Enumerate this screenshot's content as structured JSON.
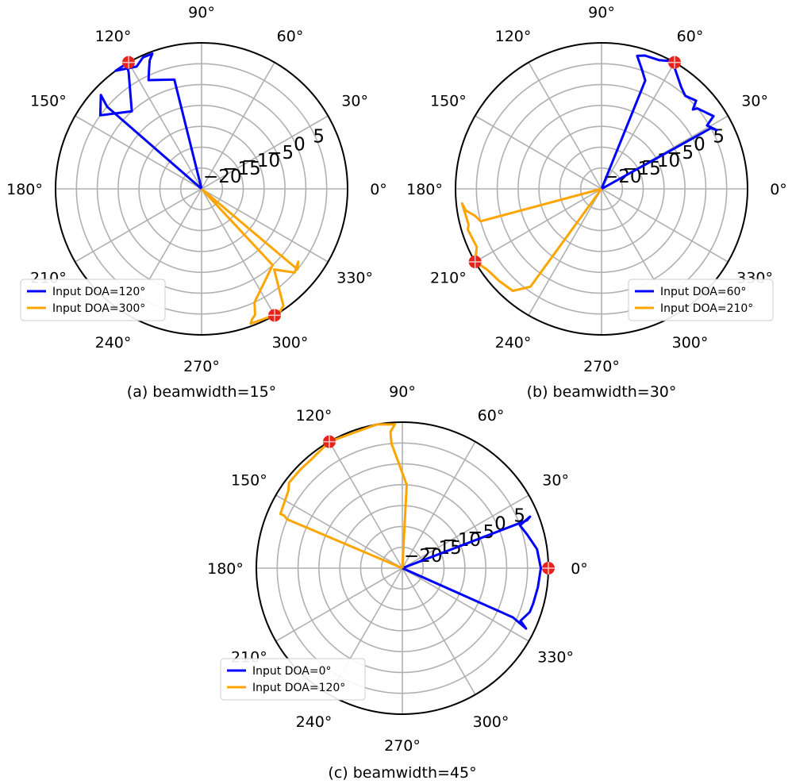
{
  "colors": {
    "series_blue": "#0000ff",
    "series_orange": "#ffa500",
    "grid": "#b0b0b0",
    "marker": "#e8221b",
    "frame": "#000000"
  },
  "chart_data": [
    {
      "type": "polar-line",
      "caption": "(a) beamwidth=15°",
      "angle_ticks": [
        "0°",
        "30°",
        "60°",
        "90°",
        "120°",
        "150°",
        "180°",
        "210°",
        "240°",
        "270°",
        "300°",
        "330°"
      ],
      "radial_ticks": [
        "−20",
        "−15",
        "−10",
        "−5",
        "0",
        "5"
      ],
      "rlim": [
        -25,
        10
      ],
      "grid": true,
      "legend_position": "lower-left",
      "series": [
        {
          "name": "Input DOA=120°",
          "color_key": "series_blue",
          "marker_angle": 120,
          "marker_r": 10,
          "points": [
            [
              0,
              -25
            ],
            [
              139,
              5
            ],
            [
              137,
              8
            ],
            [
              144,
              5
            ],
            [
              132,
              0
            ],
            [
              122,
              8
            ],
            [
              121,
              10
            ],
            [
              126,
              10
            ],
            [
              118,
              8.2
            ],
            [
              114,
              9.5
            ],
            [
              110,
              9.5
            ],
            [
              112,
              8.2
            ],
            [
              114,
              6
            ],
            [
              116,
              4
            ],
            [
              104,
              2
            ],
            [
              120,
              -25
            ]
          ]
        },
        {
          "name": "Input DOA=300°",
          "color_key": "series_orange",
          "marker_angle": 300,
          "marker_r": 10,
          "points": [
            [
              0,
              -25
            ],
            [
              320,
              5
            ],
            [
              323,
              4
            ],
            [
              318,
              5
            ],
            [
              312,
              1
            ],
            [
              305,
              9.2
            ],
            [
              303,
              9.8
            ],
            [
              300,
              10
            ],
            [
              296,
              9.6
            ],
            [
              290,
              9.4
            ],
            [
              291,
              8.6
            ],
            [
              293,
              7.8
            ],
            [
              295,
              5
            ],
            [
              313,
              0
            ],
            [
              300,
              -25
            ]
          ]
        }
      ]
    },
    {
      "type": "polar-line",
      "caption": "(b) beamwidth=30°",
      "angle_ticks": [
        "0°",
        "30°",
        "60°",
        "90°",
        "120°",
        "150°",
        "180°",
        "210°",
        "240°",
        "270°",
        "300°",
        "330°"
      ],
      "radial_ticks": [
        "−20",
        "−15",
        "−10",
        "−5",
        "0",
        "5"
      ],
      "rlim": [
        -25,
        10
      ],
      "grid": true,
      "legend_position": "lower-right",
      "series": [
        {
          "name": "Input DOA=60°",
          "color_key": "series_blue",
          "marker_angle": 60,
          "marker_r": 10,
          "points": [
            [
              0,
              -25
            ],
            [
              29,
              5
            ],
            [
              27,
              6
            ],
            [
              31,
              4.5
            ],
            [
              33,
              7
            ],
            [
              40,
              5
            ],
            [
              41,
              4
            ],
            [
              43,
              6
            ],
            [
              48,
              5
            ],
            [
              52,
              6
            ],
            [
              57,
              8
            ],
            [
              61,
              10
            ],
            [
              66,
              8.8
            ],
            [
              72,
              8.6
            ],
            [
              75,
              8
            ],
            [
              71,
              5
            ],
            [
              68,
              3
            ],
            [
              80,
              -25
            ]
          ]
        },
        {
          "name": "Input DOA=210°",
          "color_key": "series_orange",
          "marker_angle": 210,
          "marker_r": 10,
          "points": [
            [
              0,
              -25
            ],
            [
              195,
              5
            ],
            [
              192,
              6
            ],
            [
              189,
              8
            ],
            [
              186,
              8.6
            ],
            [
              195,
              8
            ],
            [
              197,
              8.5
            ],
            [
              205,
              8
            ],
            [
              210,
              10
            ],
            [
              215,
              8.6
            ],
            [
              222,
              8
            ],
            [
              229,
              7.4
            ],
            [
              234,
              4
            ],
            [
              243,
              -25
            ]
          ]
        }
      ]
    },
    {
      "type": "polar-line",
      "caption": "(c) beamwidth=45°",
      "angle_ticks": [
        "0°",
        "30°",
        "60°",
        "90°",
        "120°",
        "150°",
        "180°",
        "210°",
        "240°",
        "270°",
        "300°",
        "330°"
      ],
      "radial_ticks": [
        "−20",
        "−15",
        "−10",
        "−5",
        "0",
        "5"
      ],
      "rlim": [
        -25,
        10
      ],
      "grid": true,
      "legend_position": "lower-left",
      "series": [
        {
          "name": "Input DOA=0°",
          "color_key": "series_blue",
          "marker_angle": 0,
          "marker_r": 10,
          "points": [
            [
              0,
              -25
            ],
            [
              21,
              7
            ],
            [
              22,
              8
            ],
            [
              20,
              5
            ],
            [
              15,
              6
            ],
            [
              8,
              7.6
            ],
            [
              0,
              8.2
            ],
            [
              -8,
              7.8
            ],
            [
              -15,
              7.5
            ],
            [
              -19,
              7.3
            ],
            [
              -24,
              6
            ],
            [
              -26,
              8
            ],
            [
              -24,
              4
            ],
            [
              -21,
              -25
            ]
          ]
        },
        {
          "name": "Input DOA=120°",
          "color_key": "series_orange",
          "marker_angle": 120,
          "marker_r": 10,
          "points": [
            [
              0,
              -25
            ],
            [
              157,
              5
            ],
            [
              156,
              6
            ],
            [
              156,
              7
            ],
            [
              146,
              8
            ],
            [
              143,
              9
            ],
            [
              136,
              9
            ],
            [
              130,
              9
            ],
            [
              120,
              10
            ],
            [
              110,
              9.5
            ],
            [
              100,
              10
            ],
            [
              93,
              9.5
            ],
            [
              95,
              7.8
            ],
            [
              95,
              5
            ],
            [
              87,
              -5
            ],
            [
              85,
              -25
            ]
          ]
        }
      ]
    }
  ]
}
